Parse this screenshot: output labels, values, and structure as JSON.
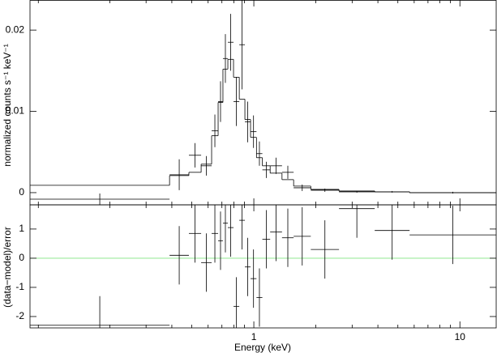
{
  "chart_data": {
    "type": "spectrum",
    "x_label": "Energy (keV)",
    "x_log": true,
    "xlim": [
      0.082,
      15
    ],
    "xticks": [
      1,
      10
    ],
    "xticks_minor": [
      0.09,
      0.2,
      0.3,
      0.4,
      0.5,
      0.6,
      0.7,
      0.8,
      0.9,
      2,
      3,
      4,
      5,
      6,
      7,
      8,
      9
    ],
    "bin_edges": [
      0.082,
      0.39,
      0.484,
      0.555,
      0.624,
      0.671,
      0.708,
      0.748,
      0.797,
      0.85,
      0.905,
      0.964,
      1.03,
      1.1,
      1.2,
      1.37,
      1.56,
      1.89,
      2.59,
      3.86,
      5.7,
      15
    ],
    "spectrum": {
      "y_label": "normalized counts s⁻¹ keV⁻¹",
      "ylim": [
        -0.0015,
        0.0237
      ],
      "yticks": [
        0,
        0.01,
        0.02
      ],
      "data_color": "#000000",
      "model_color": "#000000",
      "data": [
        -0.0008,
        0.0022,
        0.0046,
        0.0033,
        0.0076,
        0.0112,
        0.0165,
        0.0185,
        0.0112,
        0.0182,
        0.0087,
        0.0075,
        0.0048,
        0.0028,
        0.0033,
        0.0025,
        0.0006,
        0.0003,
        0.0001,
        0.0001,
        0.0
      ],
      "data_err": [
        0.0007,
        0.0019,
        0.0015,
        0.0012,
        0.002,
        0.0025,
        0.003,
        0.0035,
        0.003,
        0.0055,
        0.0025,
        0.002,
        0.0015,
        0.001,
        0.001,
        0.0008,
        0.0004,
        0.0002,
        0.0001,
        0.0001,
        0.0001
      ],
      "model": [
        0.0009,
        0.0021,
        0.0025,
        0.0035,
        0.007,
        0.0111,
        0.0152,
        0.0164,
        0.0142,
        0.0115,
        0.009,
        0.0068,
        0.0043,
        0.0033,
        0.0024,
        0.0016,
        0.0008,
        0.0004,
        0.0002,
        0.0001,
        0.0
      ]
    },
    "residual": {
      "y_label": "(data−model)/error",
      "ylim": [
        -2.39,
        1.83
      ],
      "yticks": [
        -2,
        -1,
        0,
        1
      ],
      "data_color": "#000000",
      "zero_line_color": "#7fe57f",
      "residuals": [
        -2.3,
        0.1,
        0.85,
        -0.15,
        0.85,
        0.6,
        1.2,
        1.05,
        -1.65,
        1.3,
        -0.3,
        -0.7,
        -1.35,
        0.65,
        0.9,
        0.7,
        0.75,
        0.3,
        1.7,
        0.95,
        0.8
      ],
      "residual_err": [
        1,
        1,
        1,
        1,
        1,
        1,
        1,
        1,
        1,
        1,
        1,
        1,
        1,
        1,
        1,
        1,
        1,
        1,
        1,
        1,
        1
      ]
    }
  }
}
